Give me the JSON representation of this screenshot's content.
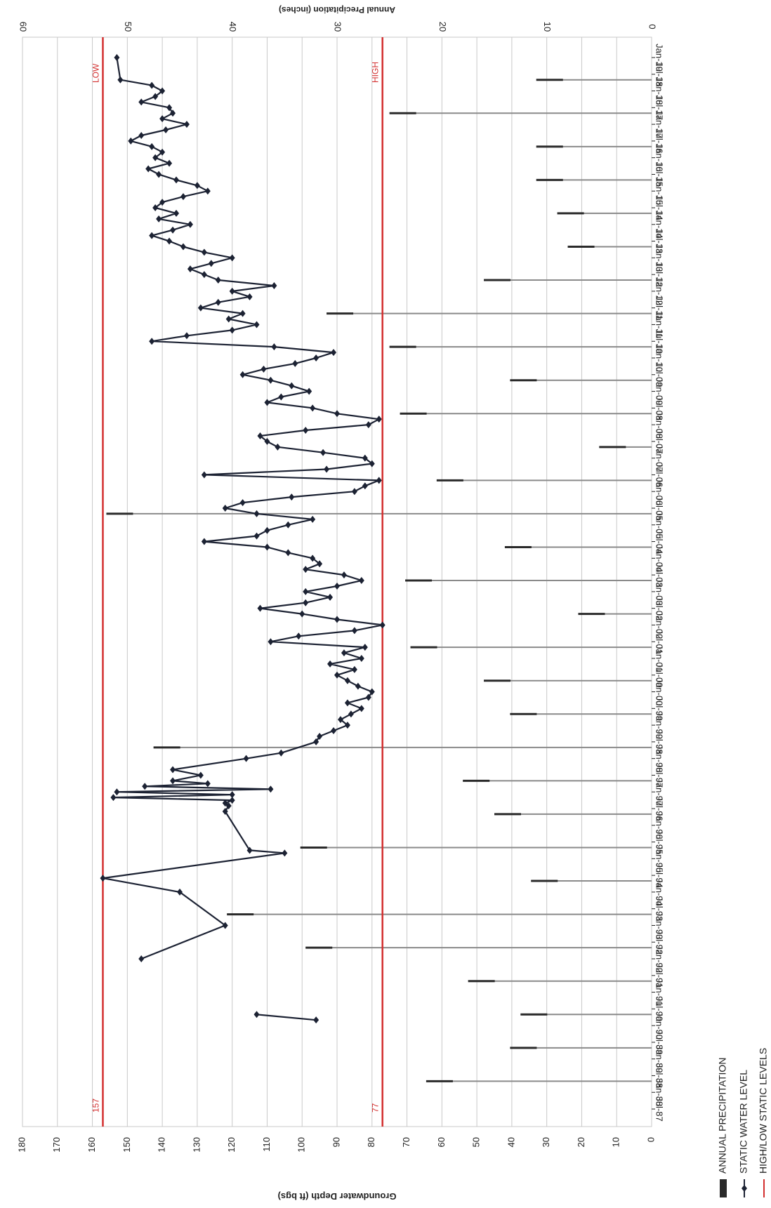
{
  "colors": {
    "background": "#ffffff",
    "gridline": "#c8c8c8",
    "precip_bar": "#8a8a8a",
    "precip_bar_top": "#2a2a2a",
    "water_level": "#1c2233",
    "high_low": "#d32f2f",
    "axis_text": "#222222"
  },
  "chart_data": {
    "type": "line",
    "orientation": "rotated 90 degrees clockwise (dates run down the right side)",
    "date_axis": {
      "ticks": [
        "Jul-87",
        "Jan-88",
        "Jul-88",
        "Jan-89",
        "Jul-89",
        "Jan-90",
        "Jul-90",
        "Jan-91",
        "Jul-91",
        "Jan-92",
        "Jul-92",
        "Jan-93",
        "Jul-93",
        "Jan-94",
        "Jul-94",
        "Jan-95",
        "Jul-95",
        "Jan-96",
        "Jul-96",
        "Jan-97",
        "Jul-97",
        "Jan-98",
        "Jul-98",
        "Jan-99",
        "Jul-99",
        "Jan-00",
        "Jul-00",
        "Jan-01",
        "Jul-01",
        "Jan-02",
        "Jul-02",
        "Jan-03",
        "Jul-03",
        "Jan-04",
        "Jul-04",
        "Jan-05",
        "Jul-05",
        "Jan-06",
        "Jul-06",
        "Jan-07",
        "Jul-07",
        "Jan-08",
        "Jul-08",
        "Jan-09",
        "Jul-09",
        "Jan-10",
        "Jul-10",
        "Jan-11",
        "Jul-11",
        "Jan-12",
        "Jul-12",
        "Jan-13",
        "Jul-13",
        "Jan-14",
        "Jul-14",
        "Jan-15",
        "Jul-15",
        "Jan-16",
        "Jul-16",
        "Jan-17",
        "Jul-17",
        "Jan-18",
        "Jul-18",
        "Jan-19"
      ]
    },
    "depth_axis": {
      "label": "Groundwater Depth (ft bgs)",
      "range": [
        0,
        180
      ],
      "ticks": [
        "0",
        "10",
        "20",
        "30",
        "40",
        "50",
        "60",
        "70",
        "80",
        "90",
        "100",
        "110",
        "120",
        "130",
        "140",
        "150",
        "160",
        "170",
        "180"
      ]
    },
    "precip_axis": {
      "label": "Annual Precipitation (inches)",
      "range": [
        0,
        60
      ],
      "ticks": [
        "0",
        "10",
        "20",
        "30",
        "40",
        "50",
        "60"
      ]
    },
    "grid": true,
    "high_level": {
      "value": 77,
      "value_label": "77",
      "tag": "HIGH"
    },
    "low_level": {
      "value": 157,
      "value_label": "157",
      "tag": "LOW"
    },
    "legend": {
      "placement": "bottom-left",
      "items": [
        {
          "label": "ANNUAL PRECIPITATION",
          "kind": "bar"
        },
        {
          "label": "STATIC WATER LEVEL",
          "kind": "line-marker"
        },
        {
          "label": "HIGH/LOW STATIC LEVELS",
          "kind": "line"
        }
      ]
    },
    "annual_precipitation": [
      {
        "date": "1988-05",
        "inches": 21.5
      },
      {
        "date": "1989-05",
        "inches": 13.5
      },
      {
        "date": "1990-05",
        "inches": 12.5
      },
      {
        "date": "1991-05",
        "inches": 17.5
      },
      {
        "date": "1992-05",
        "inches": 33
      },
      {
        "date": "1993-05",
        "inches": 40.5
      },
      {
        "date": "1994-05",
        "inches": 11.5
      },
      {
        "date": "1995-05",
        "inches": 33.5
      },
      {
        "date": "1996-05",
        "inches": 15
      },
      {
        "date": "1997-05",
        "inches": 18
      },
      {
        "date": "1998-05",
        "inches": 47.5
      },
      {
        "date": "1999-05",
        "inches": 13.5
      },
      {
        "date": "2000-05",
        "inches": 16
      },
      {
        "date": "2001-05",
        "inches": 23
      },
      {
        "date": "2002-05",
        "inches": 7
      },
      {
        "date": "2003-05",
        "inches": 23.5
      },
      {
        "date": "2004-05",
        "inches": 14
      },
      {
        "date": "2005-05",
        "inches": 52
      },
      {
        "date": "2006-05",
        "inches": 20.5
      },
      {
        "date": "2007-05",
        "inches": 5
      },
      {
        "date": "2008-05",
        "inches": 24
      },
      {
        "date": "2009-05",
        "inches": 13.5
      },
      {
        "date": "2010-05",
        "inches": 25
      },
      {
        "date": "2011-05",
        "inches": 31
      },
      {
        "date": "2012-05",
        "inches": 16
      },
      {
        "date": "2013-05",
        "inches": 8
      },
      {
        "date": "2014-05",
        "inches": 9
      },
      {
        "date": "2015-05",
        "inches": 11
      },
      {
        "date": "2016-05",
        "inches": 11
      },
      {
        "date": "2017-05",
        "inches": 25
      },
      {
        "date": "2018-05",
        "inches": 11
      }
    ],
    "static_water_level": [
      {
        "date": "1990-03",
        "depth": 96
      },
      {
        "date": "1990-05",
        "depth": 113
      },
      {
        "date": "1992-01",
        "depth": 146
      },
      {
        "date": "1993-01",
        "depth": 122
      },
      {
        "date": "1994-01",
        "depth": 135
      },
      {
        "date": "1994-06",
        "depth": 157
      },
      {
        "date": "1995-03",
        "depth": 105
      },
      {
        "date": "1995-04",
        "depth": 115
      },
      {
        "date": "1996-06",
        "depth": 122
      },
      {
        "date": "1996-08",
        "depth": 121
      },
      {
        "date": "1996-09",
        "depth": 122
      },
      {
        "date": "1996-10",
        "depth": 120
      },
      {
        "date": "1996-11",
        "depth": 154
      },
      {
        "date": "1996-12",
        "depth": 120
      },
      {
        "date": "1997-01",
        "depth": 153
      },
      {
        "date": "1997-02",
        "depth": 109
      },
      {
        "date": "1997-03",
        "depth": 145
      },
      {
        "date": "1997-04",
        "depth": 127
      },
      {
        "date": "1997-05",
        "depth": 137
      },
      {
        "date": "1997-07",
        "depth": 129
      },
      {
        "date": "1997-09",
        "depth": 137
      },
      {
        "date": "1998-01",
        "depth": 116
      },
      {
        "date": "1998-03",
        "depth": 106
      },
      {
        "date": "1998-07",
        "depth": 96
      },
      {
        "date": "1998-09",
        "depth": 95
      },
      {
        "date": "1998-11",
        "depth": 91
      },
      {
        "date": "1999-01",
        "depth": 87
      },
      {
        "date": "1999-03",
        "depth": 89
      },
      {
        "date": "1999-05",
        "depth": 86
      },
      {
        "date": "1999-07",
        "depth": 83
      },
      {
        "date": "1999-09",
        "depth": 87
      },
      {
        "date": "1999-11",
        "depth": 81
      },
      {
        "date": "2000-01",
        "depth": 80
      },
      {
        "date": "2000-03",
        "depth": 84
      },
      {
        "date": "2000-05",
        "depth": 87
      },
      {
        "date": "2000-07",
        "depth": 90
      },
      {
        "date": "2000-09",
        "depth": 85
      },
      {
        "date": "2000-11",
        "depth": 92
      },
      {
        "date": "2001-01",
        "depth": 83
      },
      {
        "date": "2001-03",
        "depth": 88
      },
      {
        "date": "2001-05",
        "depth": 82
      },
      {
        "date": "2001-07",
        "depth": 109
      },
      {
        "date": "2001-09",
        "depth": 101
      },
      {
        "date": "2001-11",
        "depth": 85
      },
      {
        "date": "2002-01",
        "depth": 77
      },
      {
        "date": "2002-03",
        "depth": 90
      },
      {
        "date": "2002-05",
        "depth": 100
      },
      {
        "date": "2002-07",
        "depth": 112
      },
      {
        "date": "2002-09",
        "depth": 99
      },
      {
        "date": "2002-11",
        "depth": 92
      },
      {
        "date": "2003-01",
        "depth": 99
      },
      {
        "date": "2003-03",
        "depth": 90
      },
      {
        "date": "2003-05",
        "depth": 83
      },
      {
        "date": "2003-07",
        "depth": 88
      },
      {
        "date": "2003-09",
        "depth": 99
      },
      {
        "date": "2003-11",
        "depth": 95
      },
      {
        "date": "2004-01",
        "depth": 97
      },
      {
        "date": "2004-03",
        "depth": 104
      },
      {
        "date": "2004-05",
        "depth": 110
      },
      {
        "date": "2004-07",
        "depth": 128
      },
      {
        "date": "2004-09",
        "depth": 113
      },
      {
        "date": "2004-11",
        "depth": 110
      },
      {
        "date": "2005-01",
        "depth": 104
      },
      {
        "date": "2005-03",
        "depth": 97
      },
      {
        "date": "2005-05",
        "depth": 113
      },
      {
        "date": "2005-07",
        "depth": 122
      },
      {
        "date": "2005-09",
        "depth": 117
      },
      {
        "date": "2005-11",
        "depth": 103
      },
      {
        "date": "2006-01",
        "depth": 85
      },
      {
        "date": "2006-03",
        "depth": 82
      },
      {
        "date": "2006-05",
        "depth": 78
      },
      {
        "date": "2006-07",
        "depth": 128
      },
      {
        "date": "2006-09",
        "depth": 93
      },
      {
        "date": "2006-11",
        "depth": 80
      },
      {
        "date": "2007-01",
        "depth": 82
      },
      {
        "date": "2007-03",
        "depth": 94
      },
      {
        "date": "2007-05",
        "depth": 107
      },
      {
        "date": "2007-07",
        "depth": 110
      },
      {
        "date": "2007-09",
        "depth": 112
      },
      {
        "date": "2007-11",
        "depth": 99
      },
      {
        "date": "2008-01",
        "depth": 81
      },
      {
        "date": "2008-03",
        "depth": 78
      },
      {
        "date": "2008-05",
        "depth": 90
      },
      {
        "date": "2008-07",
        "depth": 97
      },
      {
        "date": "2008-09",
        "depth": 110
      },
      {
        "date": "2008-11",
        "depth": 106
      },
      {
        "date": "2009-01",
        "depth": 98
      },
      {
        "date": "2009-03",
        "depth": 103
      },
      {
        "date": "2009-05",
        "depth": 109
      },
      {
        "date": "2009-07",
        "depth": 117
      },
      {
        "date": "2009-09",
        "depth": 111
      },
      {
        "date": "2009-11",
        "depth": 102
      },
      {
        "date": "2010-01",
        "depth": 96
      },
      {
        "date": "2010-03",
        "depth": 91
      },
      {
        "date": "2010-05",
        "depth": 108
      },
      {
        "date": "2010-07",
        "depth": 143
      },
      {
        "date": "2010-09",
        "depth": 133
      },
      {
        "date": "2010-11",
        "depth": 120
      },
      {
        "date": "2011-01",
        "depth": 113
      },
      {
        "date": "2011-03",
        "depth": 121
      },
      {
        "date": "2011-05",
        "depth": 117
      },
      {
        "date": "2011-07",
        "depth": 129
      },
      {
        "date": "2011-09",
        "depth": 124
      },
      {
        "date": "2011-11",
        "depth": 115
      },
      {
        "date": "2012-01",
        "depth": 120
      },
      {
        "date": "2012-03",
        "depth": 108
      },
      {
        "date": "2012-05",
        "depth": 124
      },
      {
        "date": "2012-07",
        "depth": 128
      },
      {
        "date": "2012-09",
        "depth": 132
      },
      {
        "date": "2012-11",
        "depth": 126
      },
      {
        "date": "2013-01",
        "depth": 120
      },
      {
        "date": "2013-03",
        "depth": 128
      },
      {
        "date": "2013-05",
        "depth": 134
      },
      {
        "date": "2013-07",
        "depth": 138
      },
      {
        "date": "2013-09",
        "depth": 143
      },
      {
        "date": "2013-11",
        "depth": 137
      },
      {
        "date": "2014-01",
        "depth": 132
      },
      {
        "date": "2014-03",
        "depth": 141
      },
      {
        "date": "2014-05",
        "depth": 136
      },
      {
        "date": "2014-07",
        "depth": 142
      },
      {
        "date": "2014-09",
        "depth": 140
      },
      {
        "date": "2014-11",
        "depth": 134
      },
      {
        "date": "2015-01",
        "depth": 127
      },
      {
        "date": "2015-03",
        "depth": 130
      },
      {
        "date": "2015-05",
        "depth": 136
      },
      {
        "date": "2015-07",
        "depth": 141
      },
      {
        "date": "2015-09",
        "depth": 144
      },
      {
        "date": "2015-11",
        "depth": 138
      },
      {
        "date": "2016-01",
        "depth": 142
      },
      {
        "date": "2016-03",
        "depth": 140
      },
      {
        "date": "2016-05",
        "depth": 143
      },
      {
        "date": "2016-07",
        "depth": 149
      },
      {
        "date": "2016-09",
        "depth": 146
      },
      {
        "date": "2016-11",
        "depth": 139
      },
      {
        "date": "2017-01",
        "depth": 133
      },
      {
        "date": "2017-03",
        "depth": 140
      },
      {
        "date": "2017-05",
        "depth": 137
      },
      {
        "date": "2017-07",
        "depth": 138
      },
      {
        "date": "2017-09",
        "depth": 146
      },
      {
        "date": "2017-11",
        "depth": 142
      },
      {
        "date": "2018-01",
        "depth": 140
      },
      {
        "date": "2018-03",
        "depth": 143
      },
      {
        "date": "2018-05",
        "depth": 152
      },
      {
        "date": "2019-01",
        "depth": 153
      }
    ]
  }
}
